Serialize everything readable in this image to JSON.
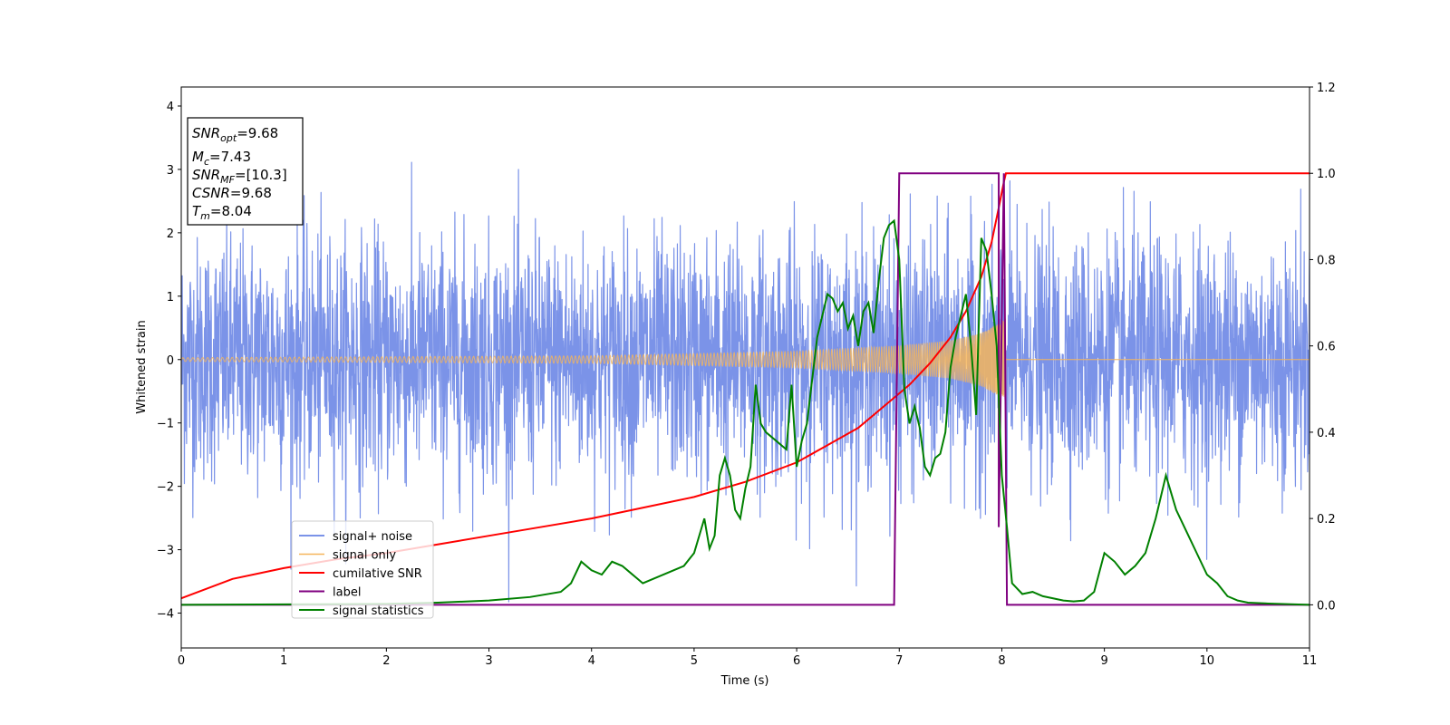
{
  "chart_data": {
    "type": "line",
    "xlabel": "Time (s)",
    "ylabel_left": "Whitened strain",
    "ylabel_right": "",
    "xlim": [
      0,
      11
    ],
    "ylim_left": [
      -4.55,
      4.3
    ],
    "ylim_right": [
      -0.1,
      1.2
    ],
    "x_ticks": [
      "0",
      "1",
      "2",
      "3",
      "4",
      "5",
      "6",
      "7",
      "8",
      "9",
      "10",
      "11"
    ],
    "y_left_ticks": [
      "4",
      "3",
      "2",
      "1",
      "0",
      "−1",
      "−2",
      "−3",
      "−4"
    ],
    "y_left_tick_values": [
      4,
      3,
      2,
      1,
      0,
      -1,
      -2,
      -3,
      -4
    ],
    "y_right_ticks": [
      "1.2",
      "1.0",
      "0.8",
      "0.6",
      "0.4",
      "0.2",
      "0.0"
    ],
    "y_right_tick_values": [
      1.2,
      1.0,
      0.8,
      0.6,
      0.4,
      0.2,
      0.0
    ],
    "grid": false,
    "legend_position": "lower-left",
    "stats_box": {
      "line1": {
        "var": "SNR",
        "sub": "opt",
        "value": "=9.68"
      },
      "line2": {
        "var": "M",
        "sub": "c",
        "value": "=7.43"
      },
      "line3": {
        "var": "SNR",
        "sub": "MF",
        "value": "=[10.3]"
      },
      "line4": {
        "var": "CSNR",
        "sub": "",
        "value": "=9.68"
      },
      "line5": {
        "var": "T",
        "sub": "m",
        "value": "=8.04"
      }
    },
    "series": [
      {
        "name": "signal+ noise",
        "color": "#7b93e8",
        "axis": "left",
        "style": "noise",
        "amplitude_std": 0.95,
        "x_range": [
          0,
          11
        ]
      },
      {
        "name": "signal only",
        "color": "#f5b55c",
        "axis": "left",
        "style": "chirp",
        "t_merge": 8.04,
        "envelope": [
          [
            0,
            0.03
          ],
          [
            4,
            0.06
          ],
          [
            6,
            0.13
          ],
          [
            7,
            0.22
          ],
          [
            7.5,
            0.3
          ],
          [
            7.8,
            0.42
          ],
          [
            8.0,
            0.6
          ],
          [
            8.04,
            0.65
          ]
        ]
      },
      {
        "name": "cumilative SNR",
        "color": "#ff0000",
        "axis": "right",
        "x": [
          0,
          0.5,
          1,
          1.5,
          2,
          2.5,
          3,
          3.5,
          4,
          4.5,
          5,
          5.5,
          6,
          6.3,
          6.6,
          6.9,
          7.1,
          7.3,
          7.5,
          7.65,
          7.8,
          7.9,
          7.97,
          8.02,
          8.04,
          11
        ],
        "values": [
          0.015,
          0.06,
          0.085,
          0.105,
          0.12,
          0.14,
          0.16,
          0.18,
          0.2,
          0.225,
          0.25,
          0.285,
          0.33,
          0.37,
          0.41,
          0.47,
          0.51,
          0.56,
          0.62,
          0.68,
          0.76,
          0.84,
          0.92,
          0.98,
          1.0,
          1.0
        ]
      },
      {
        "name": "label",
        "color": "#800080",
        "axis": "right",
        "x": [
          0,
          6.95,
          7.0,
          7.97,
          7.97,
          8.02,
          8.05,
          11
        ],
        "values": [
          0,
          0,
          1.0,
          1.0,
          0.18,
          1.0,
          0,
          0
        ]
      },
      {
        "name": "signal statistics",
        "color": "#008000",
        "axis": "right",
        "x": [
          0,
          2,
          2.5,
          3,
          3.4,
          3.7,
          3.8,
          3.9,
          4.0,
          4.1,
          4.2,
          4.3,
          4.4,
          4.5,
          4.6,
          4.7,
          4.8,
          4.9,
          5.0,
          5.1,
          5.15,
          5.2,
          5.25,
          5.3,
          5.35,
          5.4,
          5.45,
          5.5,
          5.55,
          5.6,
          5.65,
          5.7,
          5.8,
          5.9,
          5.95,
          6.0,
          6.05,
          6.1,
          6.15,
          6.2,
          6.3,
          6.35,
          6.4,
          6.45,
          6.5,
          6.55,
          6.6,
          6.65,
          6.7,
          6.75,
          6.8,
          6.85,
          6.9,
          6.95,
          7.0,
          7.05,
          7.1,
          7.15,
          7.2,
          7.25,
          7.3,
          7.35,
          7.4,
          7.45,
          7.5,
          7.55,
          7.6,
          7.65,
          7.7,
          7.75,
          7.8,
          7.85,
          7.9,
          7.95,
          8.0,
          8.05,
          8.1,
          8.2,
          8.3,
          8.4,
          8.5,
          8.6,
          8.7,
          8.8,
          8.9,
          9.0,
          9.1,
          9.2,
          9.3,
          9.4,
          9.5,
          9.6,
          9.7,
          9.8,
          9.9,
          10.0,
          10.1,
          10.2,
          10.3,
          10.4,
          10.6,
          11.0
        ],
        "values": [
          0,
          0.002,
          0.005,
          0.01,
          0.018,
          0.03,
          0.05,
          0.1,
          0.08,
          0.07,
          0.1,
          0.09,
          0.07,
          0.05,
          0.06,
          0.07,
          0.08,
          0.09,
          0.12,
          0.2,
          0.13,
          0.16,
          0.3,
          0.34,
          0.3,
          0.22,
          0.2,
          0.27,
          0.32,
          0.51,
          0.42,
          0.4,
          0.38,
          0.36,
          0.51,
          0.32,
          0.38,
          0.42,
          0.52,
          0.62,
          0.72,
          0.71,
          0.68,
          0.7,
          0.64,
          0.67,
          0.6,
          0.68,
          0.7,
          0.63,
          0.75,
          0.85,
          0.88,
          0.89,
          0.8,
          0.5,
          0.42,
          0.46,
          0.41,
          0.32,
          0.3,
          0.34,
          0.35,
          0.4,
          0.55,
          0.62,
          0.67,
          0.72,
          0.6,
          0.44,
          0.85,
          0.82,
          0.72,
          0.6,
          0.3,
          0.18,
          0.05,
          0.025,
          0.03,
          0.02,
          0.015,
          0.01,
          0.008,
          0.01,
          0.03,
          0.12,
          0.1,
          0.07,
          0.09,
          0.12,
          0.2,
          0.3,
          0.22,
          0.17,
          0.12,
          0.07,
          0.05,
          0.02,
          0.01,
          0.005,
          0.003,
          0.0
        ]
      }
    ]
  }
}
